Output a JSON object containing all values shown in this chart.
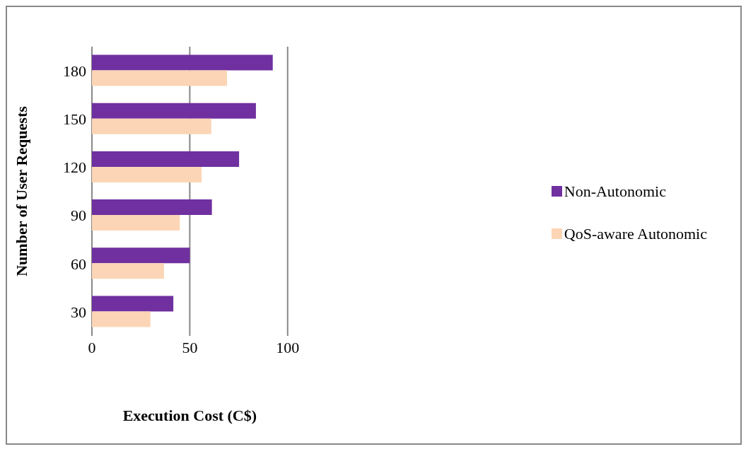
{
  "chart_data": {
    "type": "bar",
    "orientation": "horizontal",
    "xlabel": "Execution Cost (C$)",
    "ylabel": "Number of User Requests",
    "categories": [
      "180",
      "150",
      "120",
      "90",
      "60",
      "30"
    ],
    "series": [
      {
        "name": "Non-Autonomic",
        "color": "#7030a0",
        "values": [
          92.4,
          83.8,
          75.2,
          61.3,
          50,
          41.6
        ]
      },
      {
        "name": "QoS-aware Autonomic",
        "color": "#fbd5b5",
        "values": [
          69,
          61,
          56,
          44.9,
          36.8,
          29.9
        ]
      }
    ],
    "xlim": [
      0,
      100
    ],
    "xticks": [
      0,
      50,
      100
    ],
    "grid": "x",
    "legend": "right"
  }
}
